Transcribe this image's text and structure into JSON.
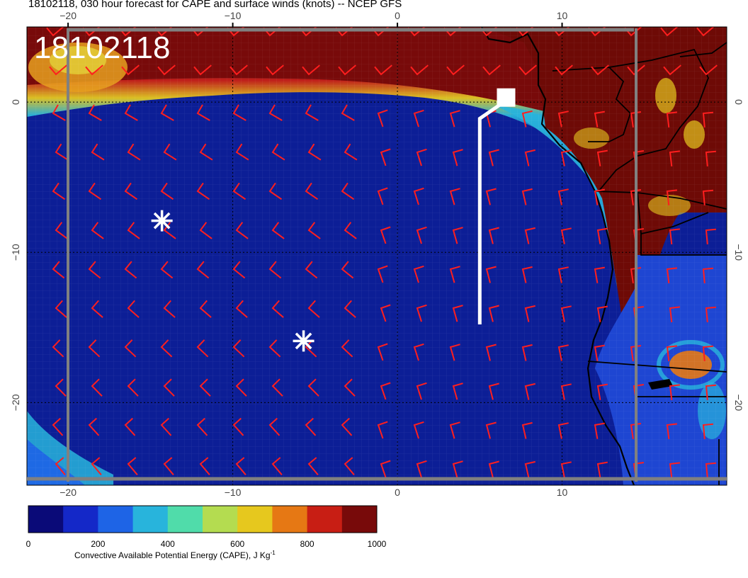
{
  "title": "18102118, 030 hour forecast for CAPE and surface winds (knots) -- NCEP GFS",
  "stamp": "18102118",
  "map": {
    "lon_range": [
      -22.5,
      20
    ],
    "lat_range": [
      -25.5,
      5
    ],
    "lon_ticks": [
      {
        "lon": -20,
        "label": "−20"
      },
      {
        "lon": -10,
        "label": "−10"
      },
      {
        "lon": 0,
        "label": "0"
      },
      {
        "lon": 10,
        "label": "10"
      }
    ],
    "lat_ticks": [
      {
        "lat": 0,
        "label": "0"
      },
      {
        "lat": -10,
        "label": "−10"
      },
      {
        "lat": -20,
        "label": "−20"
      }
    ],
    "markers": [
      {
        "name": "asterisk",
        "lon": -14.3,
        "lat": -7.9
      },
      {
        "name": "asterisk",
        "lon": -5.7,
        "lat": -15.9
      }
    ],
    "track": [
      [
        5,
        -14.8
      ],
      [
        5,
        -1.1
      ],
      [
        6.2,
        -0.2
      ],
      [
        6.6,
        0.3
      ]
    ],
    "track_end_box": {
      "lon": 6.6,
      "lat": 0.3
    }
  },
  "colorbar": {
    "min": 0,
    "max": 1000,
    "ticks": [
      "0",
      "200",
      "400",
      "600",
      "800",
      "1000"
    ],
    "label": "Convective Available Potential Energy (CAPE), J Kg",
    "label_sup": "-1",
    "colors": [
      "#0a0a78",
      "#1428c8",
      "#1e64e6",
      "#28b4dc",
      "#50dcaa",
      "#b4dc50",
      "#e6c81e",
      "#e67814",
      "#c81e14",
      "#780a0a"
    ]
  },
  "colors": {
    "ocean": "#0c1e96",
    "land": "#6e0a06",
    "wind_barb": "#ff1e1e",
    "grid_dash": "#000000",
    "frame": "#808080"
  }
}
